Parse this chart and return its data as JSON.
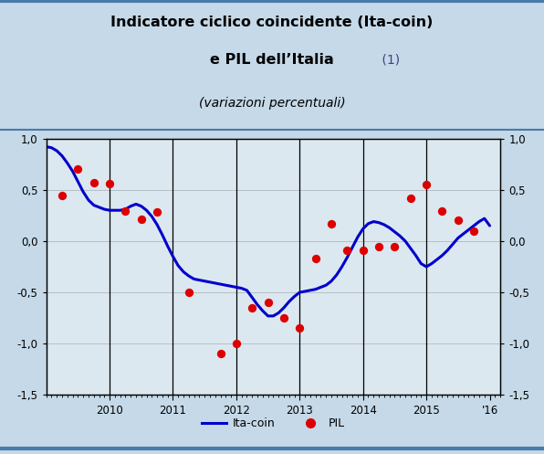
{
  "title_line1": "Indicatore ciclico coincidente (Ita-coin)",
  "title_line2_bold": "e PIL dell’Italia",
  "title_line2_normal": " (1)",
  "subtitle": "(variazioni percentuali)",
  "bg_color_outer": "#c5d9e8",
  "bg_color_plot": "#dce8f0",
  "border_color": "#4a7aaa",
  "line_color": "#0000cc",
  "dot_color": "#dd0000",
  "ylim": [
    -1.5,
    1.0
  ],
  "yticks": [
    -1.5,
    -1.0,
    -0.5,
    0.0,
    0.5,
    1.0
  ],
  "vline_years": [
    2010,
    2011,
    2012,
    2013,
    2014,
    2015
  ],
  "ita_coin_x": [
    2009.0,
    2009.083,
    2009.167,
    2009.25,
    2009.333,
    2009.417,
    2009.5,
    2009.583,
    2009.667,
    2009.75,
    2009.833,
    2009.917,
    2010.0,
    2010.083,
    2010.167,
    2010.25,
    2010.333,
    2010.417,
    2010.5,
    2010.583,
    2010.667,
    2010.75,
    2010.833,
    2010.917,
    2011.0,
    2011.083,
    2011.167,
    2011.25,
    2011.333,
    2011.417,
    2011.5,
    2011.583,
    2011.667,
    2011.75,
    2011.833,
    2011.917,
    2012.0,
    2012.083,
    2012.167,
    2012.25,
    2012.333,
    2012.417,
    2012.5,
    2012.583,
    2012.667,
    2012.75,
    2012.833,
    2012.917,
    2013.0,
    2013.083,
    2013.167,
    2013.25,
    2013.333,
    2013.417,
    2013.5,
    2013.583,
    2013.667,
    2013.75,
    2013.833,
    2013.917,
    2014.0,
    2014.083,
    2014.167,
    2014.25,
    2014.333,
    2014.417,
    2014.5,
    2014.583,
    2014.667,
    2014.75,
    2014.833,
    2014.917,
    2015.0,
    2015.083,
    2015.167,
    2015.25,
    2015.333,
    2015.417,
    2015.5,
    2015.583,
    2015.667,
    2015.75,
    2015.833,
    2015.917,
    2016.0
  ],
  "ita_coin_y": [
    0.92,
    0.91,
    0.88,
    0.83,
    0.76,
    0.68,
    0.58,
    0.48,
    0.4,
    0.35,
    0.33,
    0.31,
    0.3,
    0.3,
    0.3,
    0.31,
    0.34,
    0.36,
    0.34,
    0.3,
    0.24,
    0.16,
    0.06,
    -0.05,
    -0.15,
    -0.24,
    -0.3,
    -0.34,
    -0.37,
    -0.38,
    -0.39,
    -0.4,
    -0.41,
    -0.42,
    -0.43,
    -0.44,
    -0.45,
    -0.46,
    -0.48,
    -0.55,
    -0.62,
    -0.68,
    -0.73,
    -0.73,
    -0.7,
    -0.65,
    -0.59,
    -0.54,
    -0.5,
    -0.49,
    -0.48,
    -0.47,
    -0.45,
    -0.43,
    -0.39,
    -0.33,
    -0.25,
    -0.16,
    -0.06,
    0.04,
    0.12,
    0.17,
    0.19,
    0.18,
    0.16,
    0.13,
    0.09,
    0.05,
    0.0,
    -0.07,
    -0.14,
    -0.22,
    -0.25,
    -0.22,
    -0.18,
    -0.14,
    -0.09,
    -0.03,
    0.03,
    0.07,
    0.11,
    0.15,
    0.19,
    0.22,
    0.15
  ],
  "pil_x": [
    2009.25,
    2009.5,
    2009.75,
    2010.0,
    2010.25,
    2010.5,
    2010.75,
    2011.25,
    2011.75,
    2012.0,
    2012.25,
    2012.5,
    2012.75,
    2013.0,
    2013.25,
    2013.5,
    2013.75,
    2014.0,
    2014.25,
    2014.5,
    2014.75,
    2015.0,
    2015.25,
    2015.5,
    2015.75
  ],
  "pil_y": [
    0.44,
    0.7,
    0.57,
    0.56,
    0.29,
    0.21,
    0.28,
    -0.5,
    -1.1,
    -1.0,
    -0.65,
    -0.6,
    -0.75,
    -0.85,
    -0.17,
    0.17,
    -0.09,
    -0.09,
    -0.05,
    -0.05,
    0.42,
    0.55,
    0.29,
    0.2,
    0.1
  ],
  "xmin": 2009.0,
  "xmax": 2016.17,
  "xtick_positions": [
    2010,
    2011,
    2012,
    2013,
    2014,
    2015,
    2016
  ],
  "xtick_labels": [
    "2010",
    "2011",
    "2012",
    "2013",
    "2014",
    "2015",
    "'16"
  ],
  "legend_line_label": "Ita-coin",
  "legend_dot_label": "PIL"
}
